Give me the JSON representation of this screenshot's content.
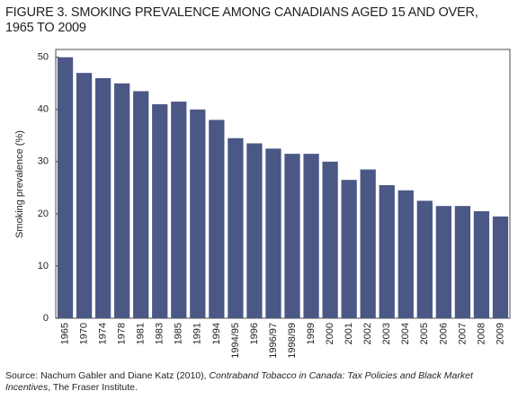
{
  "chart_data": {
    "type": "bar",
    "title": "FIGURE 3. SMOKING PREVALENCE AMONG CANADIANS AGED 15 AND OVER, 1965 TO 2009",
    "y_label": "Smoking prevalence (%)",
    "categories": [
      "1965",
      "1970",
      "1974",
      "1978",
      "1981",
      "1983",
      "1985",
      "1991",
      "1994",
      "1994/95",
      "1996",
      "1996/97",
      "1998/99",
      "1999",
      "2000",
      "2001",
      "2002",
      "2003",
      "2004",
      "2005",
      "2006",
      "2007",
      "2008",
      "2009"
    ],
    "values": [
      50,
      47,
      46,
      45,
      43.5,
      41,
      41.5,
      40,
      38,
      34.5,
      33.5,
      32.5,
      31.5,
      31.5,
      30,
      26.5,
      28.5,
      25.5,
      24.5,
      22.5,
      21.5,
      21.5,
      20.5,
      19.5
    ],
    "color": "#4b5785",
    "ylim": [
      0,
      51.5
    ],
    "yticks": [
      0,
      10,
      20,
      30,
      40,
      50
    ],
    "grid": false,
    "source": {
      "text": "Source: Nachum Gabler and Diane Katz (2010),",
      "publication": "Contraband Tobacco in Canada: Tax Policies and Black Market Incentives",
      "publisher": ", The Fraser Institute."
    }
  }
}
